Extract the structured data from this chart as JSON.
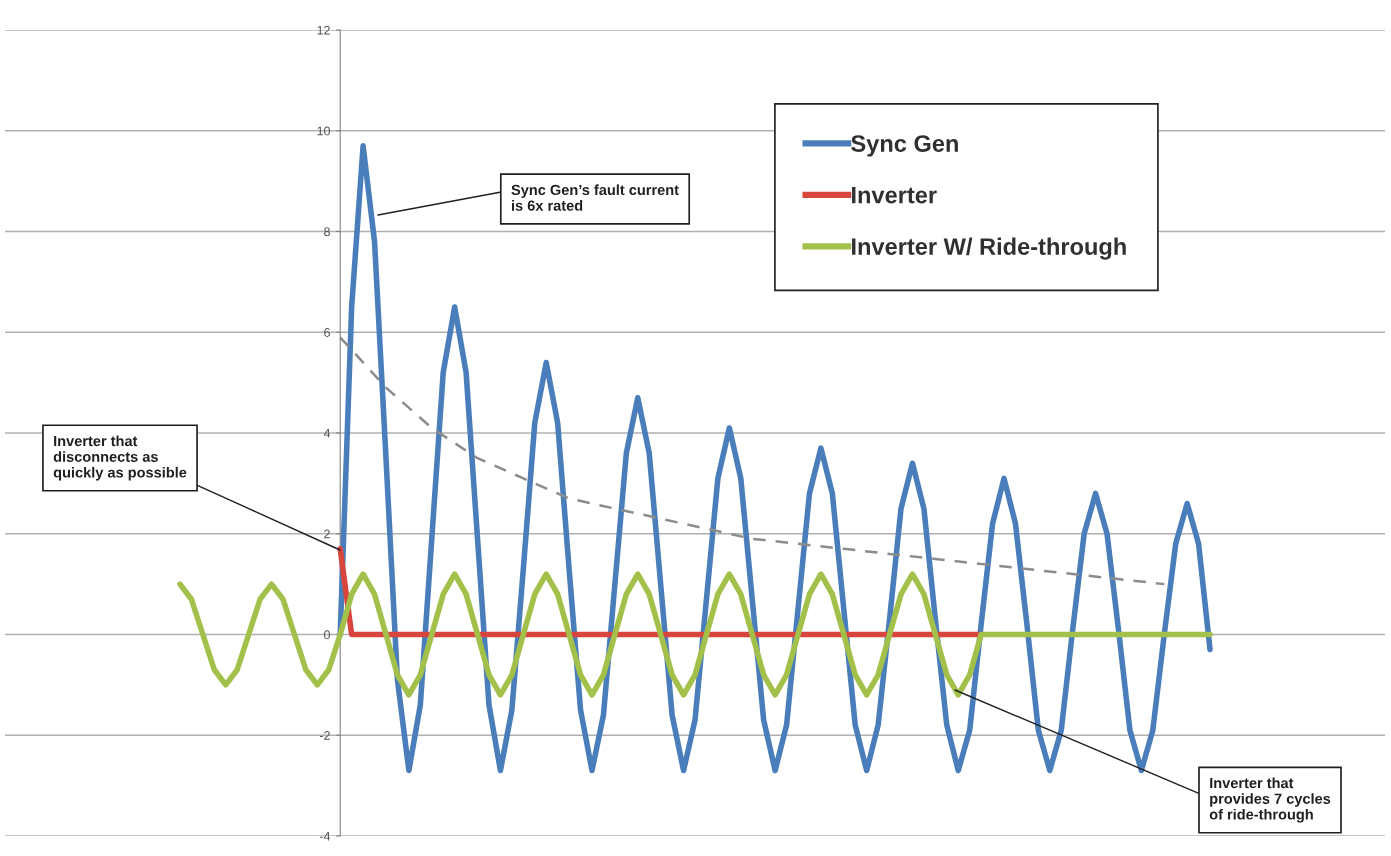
{
  "chart_data": {
    "type": "line",
    "categories": [
      null,
      null,
      null,
      null,
      null,
      null,
      null,
      null,
      null,
      null,
      null,
      null,
      null,
      null,
      null,
      null,
      null,
      null,
      null,
      null,
      null,
      null,
      null,
      null,
      null,
      null,
      null,
      null,
      null,
      null,
      null,
      null,
      null,
      null,
      null,
      null,
      null,
      null,
      null,
      null,
      null,
      null,
      null,
      null,
      null,
      null,
      null,
      null,
      null,
      null,
      null,
      null,
      null,
      null,
      null,
      null,
      null,
      null,
      null,
      null,
      null,
      null,
      null,
      null,
      null,
      null,
      null,
      null,
      null,
      null,
      null,
      null,
      null,
      null,
      null,
      null,
      null,
      null,
      null,
      null,
      null,
      null,
      null,
      null,
      null,
      null,
      null,
      null,
      null,
      null,
      null
    ],
    "ylim": [
      -4,
      12
    ],
    "yticks": [
      -4,
      -2,
      0,
      2,
      4,
      6,
      8,
      10,
      12
    ],
    "grid": "y",
    "legend": "top right",
    "series": [
      {
        "name": "Sync Gen",
        "color": "#4a7ebb",
        "values": [
          null,
          null,
          null,
          null,
          null,
          null,
          null,
          null,
          null,
          null,
          null,
          null,
          null,
          null,
          0,
          6.5,
          9.7,
          7.8,
          3.5,
          -0.9,
          -2.7,
          -1.4,
          1.9,
          5.2,
          6.5,
          5.2,
          1.9,
          -1.4,
          -2.7,
          -1.5,
          1.3,
          4.2,
          5.4,
          4.2,
          1.3,
          -1.5,
          -2.7,
          -1.6,
          1.0,
          3.6,
          4.7,
          3.6,
          1.0,
          -1.6,
          -2.7,
          -1.7,
          0.7,
          3.1,
          4.1,
          3.1,
          0.7,
          -1.7,
          -2.7,
          -1.8,
          0.5,
          2.8,
          3.7,
          2.8,
          0.5,
          -1.8,
          -2.7,
          -1.8,
          0.3,
          2.5,
          3.4,
          2.5,
          0.3,
          -1.8,
          -2.7,
          -1.9,
          0.2,
          2.2,
          3.1,
          2.2,
          0.2,
          -1.9,
          -2.7,
          -1.9,
          0.1,
          2.0,
          2.8,
          2.0,
          0.1,
          -1.9,
          -2.7,
          -1.9,
          0,
          1.8,
          2.6,
          1.8,
          -0.3
        ]
      },
      {
        "name": "Inverter",
        "color": "#d8453c",
        "values": [
          null,
          null,
          null,
          null,
          null,
          null,
          null,
          null,
          null,
          null,
          null,
          null,
          null,
          null,
          1.7,
          0,
          0,
          0,
          0,
          0,
          0,
          0,
          0,
          0,
          0,
          0,
          0,
          0,
          0,
          0,
          0,
          0,
          0,
          0,
          0,
          0,
          0,
          0,
          0,
          0,
          0,
          0,
          0,
          0,
          0,
          0,
          0,
          0,
          0,
          0,
          0,
          0,
          0,
          0,
          0,
          0,
          0,
          0,
          0,
          0,
          0,
          0,
          0,
          0,
          0,
          0,
          0,
          0,
          0,
          0,
          0,
          null,
          null,
          null,
          null,
          null,
          null,
          null,
          null,
          null,
          null,
          null,
          null,
          null,
          null,
          null,
          null,
          null,
          null,
          null,
          null
        ]
      },
      {
        "name": "Inverter W/ Ride-through",
        "color": "#a3c04a",
        "values": [
          1,
          0.7,
          0,
          -0.7,
          -1,
          -0.7,
          0,
          0.7,
          1,
          0.7,
          0,
          -0.7,
          -1,
          -0.7,
          0,
          0.8,
          1.2,
          0.8,
          0,
          -0.8,
          -1.2,
          -0.8,
          0,
          0.8,
          1.2,
          0.8,
          0,
          -0.8,
          -1.2,
          -0.8,
          0,
          0.8,
          1.2,
          0.8,
          0,
          -0.8,
          -1.2,
          -0.8,
          0,
          0.8,
          1.2,
          0.8,
          0,
          -0.8,
          -1.2,
          -0.8,
          0,
          0.8,
          1.2,
          0.8,
          0,
          -0.8,
          -1.2,
          -0.8,
          0,
          0.8,
          1.2,
          0.8,
          0,
          -0.8,
          -1.2,
          -0.8,
          0,
          0.8,
          1.2,
          0.8,
          0,
          -0.8,
          -1.2,
          -0.8,
          0,
          0,
          0,
          0,
          0,
          0,
          0,
          0,
          0,
          0,
          0,
          0,
          0,
          0,
          0,
          0,
          0,
          0,
          0,
          0,
          0
        ]
      },
      {
        "color": "#8c8c8c",
        "line_style": "dashed",
        "values": [
          null,
          null,
          null,
          null,
          null,
          null,
          null,
          null,
          null,
          null,
          null,
          null,
          null,
          null,
          5.9,
          null,
          null,
          null,
          4.9,
          null,
          null,
          null,
          4.1,
          null,
          null,
          null,
          3.5,
          null,
          null,
          null,
          3.1,
          null,
          null,
          null,
          2.7,
          null,
          null,
          null,
          2.5,
          null,
          null,
          null,
          2.3,
          null,
          null,
          null,
          2.1,
          null,
          null,
          null,
          1.9,
          null,
          null,
          null,
          1.8,
          null,
          null,
          null,
          1.7,
          null,
          null,
          null,
          1.6,
          null,
          null,
          null,
          1.5,
          null,
          null,
          null,
          1.4,
          null,
          null,
          null,
          1.3,
          null,
          null,
          null,
          1.2,
          null,
          null,
          null,
          1.1,
          null,
          null,
          null,
          1.0,
          null,
          null,
          null,
          null
        ]
      }
    ],
    "annotations": [
      "Sync Gen’s fault current\nis 6x rated",
      "Inverter that\ndisconnects as\nquickly as possible",
      "Inverter that\nprovides 7 cycles\nof ride-through"
    ]
  }
}
